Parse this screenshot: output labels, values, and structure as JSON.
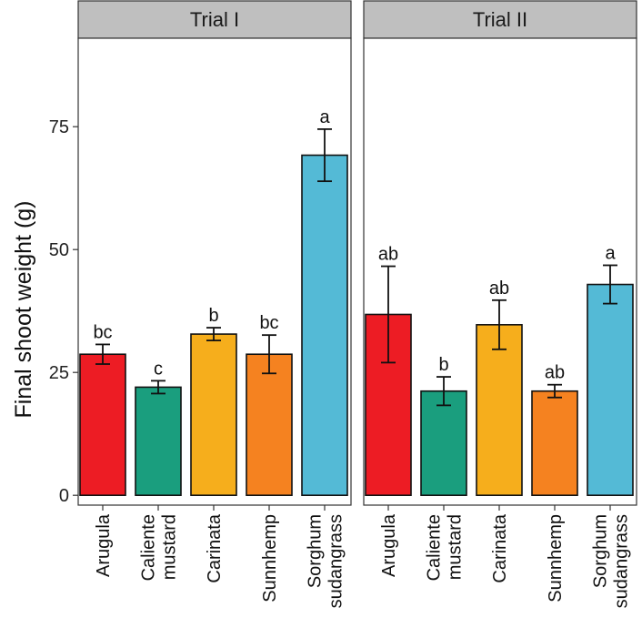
{
  "chart_data": {
    "type": "bar",
    "ylabel": "Final shoot weight (g)",
    "ylim": [
      -2,
      93
    ],
    "yticks": [
      0,
      25,
      50,
      75
    ],
    "categories": [
      [
        "Arugula"
      ],
      [
        "Caliente",
        "mustard"
      ],
      [
        "Carinata"
      ],
      [
        "Sunnhemp"
      ],
      [
        "Sorghum",
        "sudangrass"
      ]
    ],
    "colors": [
      "#ED1C24",
      "#1A9E7E",
      "#F6AE1C",
      "#F58220",
      "#54BAD6"
    ],
    "panels": [
      {
        "title": "Trial I",
        "values": [
          28.7,
          22.0,
          32.8,
          28.7,
          69.2
        ],
        "errors": [
          2.0,
          1.3,
          1.3,
          3.9,
          5.3
        ],
        "letters": [
          "bc",
          "c",
          "b",
          "bc",
          "a"
        ]
      },
      {
        "title": "Trial II",
        "values": [
          36.8,
          21.2,
          34.7,
          21.2,
          42.9
        ],
        "errors": [
          9.8,
          2.9,
          5.0,
          1.3,
          3.9
        ],
        "letters": [
          "ab",
          "b",
          "ab",
          "ab",
          "a"
        ]
      }
    ]
  }
}
